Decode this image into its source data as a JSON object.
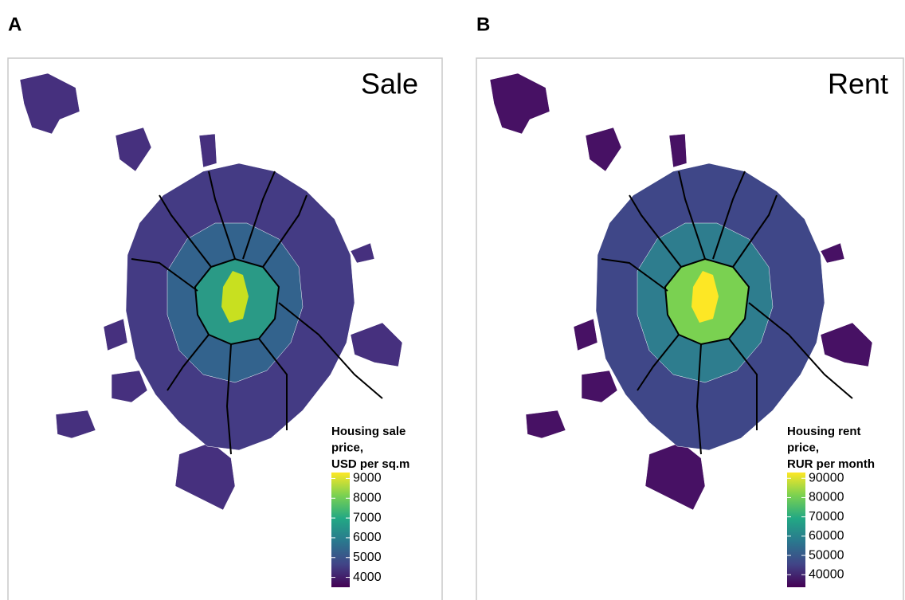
{
  "panels": [
    {
      "label": "A",
      "title": "Sale",
      "legend": {
        "title": [
          "Housing sale",
          "price,",
          "USD per sq.m"
        ],
        "lim": [
          3500,
          9300
        ],
        "ticks": [
          4000,
          5000,
          6000,
          7000,
          8000,
          9000
        ]
      }
    },
    {
      "label": "B",
      "title": "Rent",
      "legend": {
        "title": [
          "Housing rent",
          "price,",
          "RUR per month"
        ],
        "lim": [
          33500,
          93000
        ],
        "ticks": [
          40000,
          50000,
          60000,
          70000,
          80000,
          90000
        ]
      }
    }
  ]
}
